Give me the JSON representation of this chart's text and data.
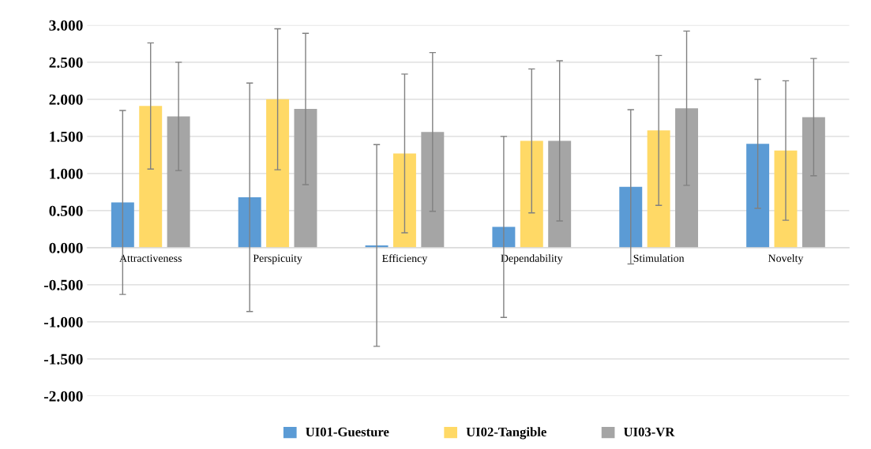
{
  "chart_data": {
    "type": "bar",
    "categories": [
      "Attractiveness",
      "Perspicuity",
      "Efficiency",
      "Dependability",
      "Stimulation",
      "Novelty"
    ],
    "series": [
      {
        "name": "UI01-Guesture",
        "color": "#5b9bd5",
        "values": [
          0.61,
          0.68,
          0.03,
          0.28,
          0.82,
          1.4
        ],
        "errors": [
          1.24,
          1.54,
          1.36,
          1.22,
          1.04,
          0.87
        ]
      },
      {
        "name": "UI02-Tangible",
        "color": "#ffd966",
        "values": [
          1.91,
          2.0,
          1.27,
          1.44,
          1.58,
          1.31
        ],
        "errors": [
          0.85,
          0.95,
          1.07,
          0.97,
          1.01,
          0.94
        ]
      },
      {
        "name": "UI03-VR",
        "color": "#a5a5a5",
        "values": [
          1.77,
          1.87,
          1.56,
          1.44,
          1.88,
          1.76
        ],
        "errors": [
          0.73,
          1.02,
          1.07,
          1.08,
          1.04,
          0.79
        ]
      }
    ],
    "ylim": [
      -2,
      3
    ],
    "yticks": [
      {
        "value": -2,
        "label": "-2.000"
      },
      {
        "value": -1.5,
        "label": "-1.500"
      },
      {
        "value": -1,
        "label": "-1.000"
      },
      {
        "value": -0.5,
        "label": "-0.500"
      },
      {
        "value": 0,
        "label": "0.000"
      },
      {
        "value": 0.5,
        "label": "0.500"
      },
      {
        "value": 1,
        "label": "1.000"
      },
      {
        "value": 1.5,
        "label": "1.500"
      },
      {
        "value": 2,
        "label": "2.000"
      },
      {
        "value": 2.5,
        "label": "2.500"
      },
      {
        "value": 3,
        "label": "3.000"
      }
    ],
    "grid": "y",
    "legend": "bottom"
  }
}
